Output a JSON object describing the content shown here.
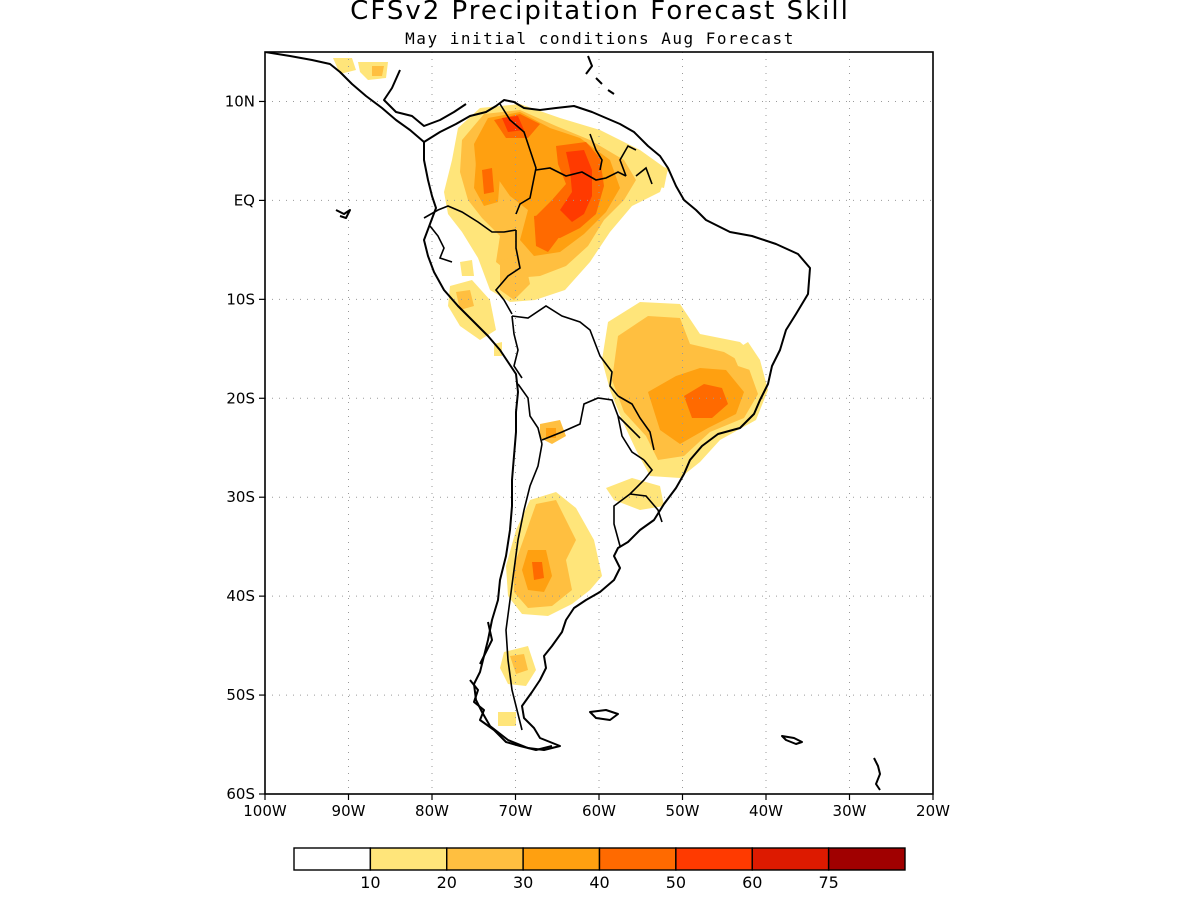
{
  "title": "CFSv2 Precipitation Forecast Skill",
  "subtitle": "May initial conditions  Aug Forecast",
  "map": {
    "lon_range": [
      -100,
      -20
    ],
    "lat_range": [
      -60,
      15
    ],
    "lat_labels": [
      "10N",
      "EQ",
      "10S",
      "20S",
      "30S",
      "40S",
      "50S",
      "60S"
    ],
    "lat_values": [
      10,
      0,
      -10,
      -20,
      -30,
      -40,
      -50,
      -60
    ],
    "lon_labels": [
      "100W",
      "90W",
      "80W",
      "70W",
      "60W",
      "50W",
      "40W",
      "30W",
      "20W"
    ],
    "lon_values": [
      -100,
      -90,
      -80,
      -70,
      -60,
      -50,
      -40,
      -30,
      -20
    ],
    "grid": "dotted"
  },
  "colorbar": {
    "labels": [
      "10",
      "20",
      "30",
      "40",
      "50",
      "60",
      "75"
    ],
    "colors": [
      "#ffffff",
      "#ffe57a",
      "#ffbf40",
      "#ffa010",
      "#ff6a00",
      "#ff3a00",
      "#dd1a00",
      "#a00000"
    ]
  },
  "colors": {
    "coast": "#000000",
    "grid": "#9a9a9a"
  }
}
